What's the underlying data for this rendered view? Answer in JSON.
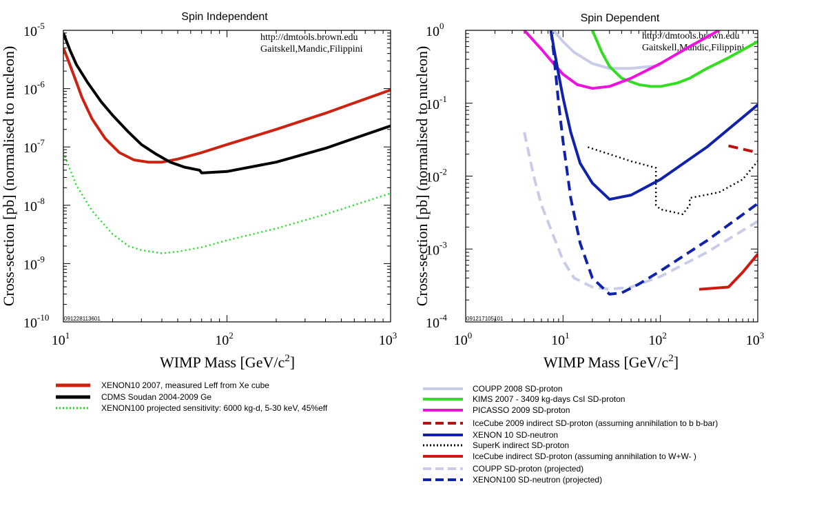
{
  "chart_data": [
    {
      "type": "line",
      "title": "Spin Independent",
      "xlabel": "WIMP Mass [GeV/c^2]",
      "ylabel": "Cross-section [pb] (normalised to nucleon)",
      "xscale": "log",
      "yscale": "log",
      "xlim": [
        10,
        1000
      ],
      "ylim": [
        1e-10,
        1e-05
      ],
      "xticks": [
        {
          "value": 10,
          "base": "10",
          "exp": "1"
        },
        {
          "value": 100,
          "base": "10",
          "exp": "2"
        },
        {
          "value": 1000,
          "base": "10",
          "exp": "3"
        }
      ],
      "yticks": [
        {
          "value": 1e-05,
          "base": "10",
          "exp": "-5"
        },
        {
          "value": 1e-06,
          "base": "10",
          "exp": "-6"
        },
        {
          "value": 1e-07,
          "base": "10",
          "exp": "-7"
        },
        {
          "value": 1e-08,
          "base": "10",
          "exp": "-8"
        },
        {
          "value": 1e-09,
          "base": "10",
          "exp": "-9"
        },
        {
          "value": 1e-10,
          "base": "10",
          "exp": "-10"
        }
      ],
      "annotation_lines": [
        "http://dmtools.brown.edu",
        "Gaitskell,Mandic,Filippini"
      ],
      "plot_id": "091228113601",
      "series": [
        {
          "name": "XENON10 2007, measured Leff from Xe cube",
          "color": "#cc2211",
          "style": "solid",
          "x": [
            10,
            11,
            12,
            13,
            15,
            18,
            22,
            27,
            33,
            40,
            50,
            70,
            100,
            200,
            400,
            1000
          ],
          "y": [
            5e-06,
            2.5e-06,
            1.3e-06,
            7e-07,
            3e-07,
            1.4e-07,
            8e-08,
            6e-08,
            5.5e-08,
            5.5e-08,
            6.2e-08,
            8e-08,
            1.1e-07,
            2e-07,
            3.8e-07,
            9.5e-07
          ]
        },
        {
          "name": "CDMS Soudan 2004-2009 Ge",
          "color": "#000000",
          "style": "solid",
          "x": [
            10,
            11,
            12,
            14,
            17,
            20,
            25,
            30,
            37,
            45,
            55,
            68,
            70,
            72,
            100,
            200,
            400,
            1000
          ],
          "y": [
            9e-06,
            4.5e-06,
            2.6e-06,
            1.3e-06,
            6e-07,
            3.5e-07,
            1.8e-07,
            1.1e-07,
            7.5e-08,
            5.5e-08,
            4.5e-08,
            4e-08,
            3.6e-08,
            3.6e-08,
            3.8e-08,
            5.5e-08,
            9.5e-08,
            2.3e-07
          ]
        },
        {
          "name": "XENON100 projected sensitivity: 6000 kg-d,   5-30 keV, 45%eff",
          "color": "#22dd22",
          "style": "dotted",
          "x": [
            10,
            12,
            15,
            20,
            25,
            30,
            40,
            50,
            70,
            100,
            200,
            400,
            1000
          ],
          "y": [
            8e-08,
            2.2e-08,
            8e-09,
            3.2e-09,
            2e-09,
            1.7e-09,
            1.5e-09,
            1.6e-09,
            1.9e-09,
            2.5e-09,
            4e-09,
            7e-09,
            1.6e-08
          ]
        }
      ]
    },
    {
      "type": "line",
      "title": "Spin Dependent",
      "xlabel": "WIMP Mass [GeV/c^2]",
      "ylabel": "Cross-section [pb] (normalised to nucleon)",
      "xscale": "log",
      "yscale": "log",
      "xlim": [
        1,
        1000
      ],
      "ylim": [
        0.0001,
        1
      ],
      "xticks": [
        {
          "value": 1,
          "base": "10",
          "exp": "0"
        },
        {
          "value": 10,
          "base": "10",
          "exp": "1"
        },
        {
          "value": 100,
          "base": "10",
          "exp": "2"
        },
        {
          "value": 1000,
          "base": "10",
          "exp": "3"
        }
      ],
      "yticks": [
        {
          "value": 1,
          "base": "10",
          "exp": "0"
        },
        {
          "value": 0.1,
          "base": "10",
          "exp": "-1"
        },
        {
          "value": 0.01,
          "base": "10",
          "exp": "-2"
        },
        {
          "value": 0.001,
          "base": "10",
          "exp": "-3"
        },
        {
          "value": 0.0001,
          "base": "10",
          "exp": "-4"
        }
      ],
      "annotation_lines": [
        "http://dmtools.brown.edu",
        "Gaitskell,Mandic,Filippini"
      ],
      "plot_id": "091217105101",
      "series": [
        {
          "name": "COUPP 2008 SD-proton",
          "color": "#c8cce8",
          "style": "solid",
          "x": [
            8,
            10,
            13,
            20,
            30,
            50,
            100
          ],
          "y": [
            1,
            0.7,
            0.5,
            0.35,
            0.3,
            0.3,
            0.33
          ]
        },
        {
          "name": "KIMS 2007 - 3409 kg-days CsI SD-proton",
          "color": "#33dd22",
          "style": "solid",
          "x": [
            20,
            25,
            30,
            40,
            60,
            80,
            100,
            150,
            200,
            300,
            500,
            1000
          ],
          "y": [
            1,
            0.5,
            0.32,
            0.22,
            0.18,
            0.17,
            0.17,
            0.19,
            0.22,
            0.3,
            0.42,
            0.7
          ]
        },
        {
          "name": "PICASSO 2009 SD-proton",
          "color": "#ee11dd",
          "style": "solid",
          "x": [
            4,
            6,
            8,
            10,
            14,
            20,
            30,
            50,
            100,
            200,
            400
          ],
          "y": [
            1,
            0.55,
            0.35,
            0.25,
            0.18,
            0.16,
            0.17,
            0.22,
            0.35,
            0.6,
            1
          ]
        },
        {
          "name": "IceCube 2009 indirect SD-proton (assuming annihilation to b b-bar)",
          "color": "#bb1111",
          "style": "dashed",
          "x": [
            500,
            1000
          ],
          "y": [
            0.026,
            0.021
          ]
        },
        {
          "name": "XENON 10 SD-neutron",
          "color": "#1122aa",
          "style": "solid",
          "x": [
            7.5,
            8,
            9,
            10,
            12,
            15,
            20,
            30,
            50,
            100,
            300,
            1000
          ],
          "y": [
            1,
            0.6,
            0.25,
            0.12,
            0.04,
            0.015,
            0.008,
            0.0048,
            0.0055,
            0.009,
            0.025,
            0.095
          ]
        },
        {
          "name": "SuperK indirect SD-proton",
          "color": "#000000",
          "style": "dotted",
          "x": [
            18,
            30,
            50,
            90,
            90,
            100,
            170,
            200,
            200,
            400,
            700,
            1000
          ],
          "y": [
            0.025,
            0.02,
            0.016,
            0.013,
            0.004,
            0.0035,
            0.003,
            0.004,
            0.005,
            0.006,
            0.009,
            0.016
          ]
        },
        {
          "name": "IceCube indirect SD-proton (assuming annihilation to W+W-)",
          "color": "#cc1a11",
          "style": "solid",
          "x": [
            250,
            500,
            700,
            1000
          ],
          "y": [
            0.00028,
            0.0003,
            0.00048,
            0.00085
          ]
        },
        {
          "name": "COUPP SD-proton (projected)",
          "color": "#c8cce8",
          "style": "dashed",
          "x": [
            4,
            5,
            6,
            8,
            10,
            13,
            20,
            30,
            50,
            100,
            300,
            1000
          ],
          "y": [
            0.04,
            0.01,
            0.004,
            0.0015,
            0.0007,
            0.0004,
            0.0003,
            0.00028,
            0.0003,
            0.00042,
            0.0009,
            0.0024
          ]
        },
        {
          "name": "XENON100 SD-neutron (projected)",
          "color": "#1122aa",
          "style": "dashed",
          "x": [
            7.5,
            8,
            9,
            10,
            12,
            15,
            20,
            30,
            40,
            60,
            100,
            300,
            1000
          ],
          "y": [
            1,
            0.5,
            0.1,
            0.03,
            0.005,
            0.0012,
            0.0004,
            0.00024,
            0.00025,
            0.00033,
            0.0005,
            0.0013,
            0.0042
          ]
        }
      ]
    }
  ],
  "legends": [
    {
      "entries": [
        {
          "label": "XENON10 2007, measured Leff from Xe cube",
          "color": "#cc2211",
          "style": "solid"
        },
        {
          "label": "CDMS Soudan 2004-2009 Ge",
          "color": "#000000",
          "style": "solid"
        },
        {
          "label": "XENON100 projected sensitivity: 6000 kg-d,   5-30 keV, 45%eff",
          "color": "#22dd22",
          "style": "dotted"
        }
      ]
    },
    {
      "entries": [
        {
          "label": "COUPP 2008 SD-proton",
          "color": "#c8cce8",
          "style": "solid"
        },
        {
          "label": "KIMS 2007 - 3409 kg-days CsI SD-proton",
          "color": "#33dd22",
          "style": "solid"
        },
        {
          "label": "PICASSO 2009 SD-proton",
          "color": "#ee11dd",
          "style": "solid"
        },
        {
          "label": "IceCube 2009 indirect SD-proton (assuming annihilation to b b-bar)",
          "color": "#bb1111",
          "style": "dashed"
        },
        {
          "label": "XENON 10 SD-neutron",
          "color": "#1122aa",
          "style": "solid"
        },
        {
          "label": "SuperK indirect SD-proton",
          "color": "#000000",
          "style": "dotted"
        },
        {
          "label": "IceCube indirect SD-proton (assuming annihilation to W+W- )",
          "color": "#cc1a11",
          "style": "solid"
        },
        {
          "label": "COUPP SD-proton (projected)",
          "color": "#c8cce8",
          "style": "dashed"
        },
        {
          "label": "XENON100 SD-neutron (projected)",
          "color": "#1122aa",
          "style": "dashed"
        }
      ]
    }
  ]
}
